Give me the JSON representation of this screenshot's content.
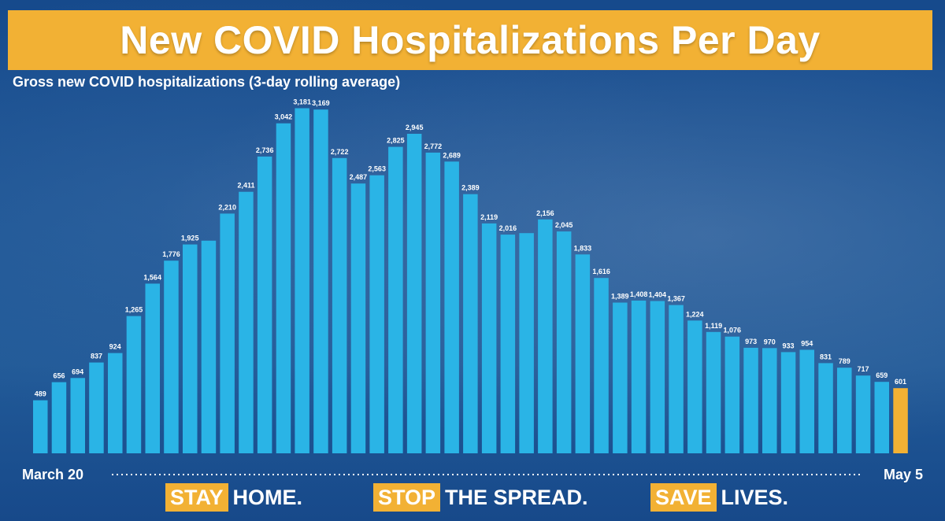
{
  "header": {
    "title": "New COVID Hospitalizations Per Day",
    "subtitle": "Gross new COVID hospitalizations (3-day rolling average)"
  },
  "colors": {
    "background": "#1d5696",
    "banner": "#f2b134",
    "bar": "#2ab4e6",
    "bar_highlight": "#f2b134",
    "text": "#ffffff"
  },
  "chart_data": {
    "type": "bar",
    "title": "New COVID Hospitalizations Per Day",
    "subtitle": "Gross new COVID hospitalizations (3-day rolling average)",
    "x_start_label": "March 20",
    "x_end_label": "May 5",
    "values": [
      489,
      656,
      694,
      837,
      924,
      1265,
      1564,
      1776,
      1925,
      null,
      2210,
      2411,
      2736,
      3042,
      3181,
      3169,
      2722,
      2487,
      2563,
      2825,
      2945,
      2772,
      2689,
      2389,
      2119,
      2016,
      null,
      2156,
      2045,
      1833,
      1616,
      1389,
      1408,
      1404,
      1367,
      1224,
      1119,
      1076,
      973,
      970,
      933,
      954,
      831,
      789,
      717,
      659,
      601
    ],
    "values_unlabeled_estimate": [
      489,
      656,
      694,
      837,
      924,
      1265,
      1564,
      1776,
      1925,
      1960,
      2210,
      2411,
      2736,
      3042,
      3181,
      3169,
      2722,
      2487,
      2563,
      2825,
      2945,
      2772,
      2689,
      2389,
      2119,
      2016,
      2030,
      2156,
      2045,
      1833,
      1616,
      1389,
      1408,
      1404,
      1367,
      1224,
      1119,
      1076,
      973,
      970,
      933,
      954,
      831,
      789,
      717,
      659,
      601
    ],
    "highlight_last": true,
    "ylim": [
      0,
      3250
    ],
    "grid": false,
    "legend": "none"
  },
  "footer": {
    "slogans": [
      {
        "box": "STAY",
        "rest": "HOME."
      },
      {
        "box": "STOP",
        "rest": "THE SPREAD."
      },
      {
        "box": "SAVE",
        "rest": "LIVES."
      }
    ]
  }
}
